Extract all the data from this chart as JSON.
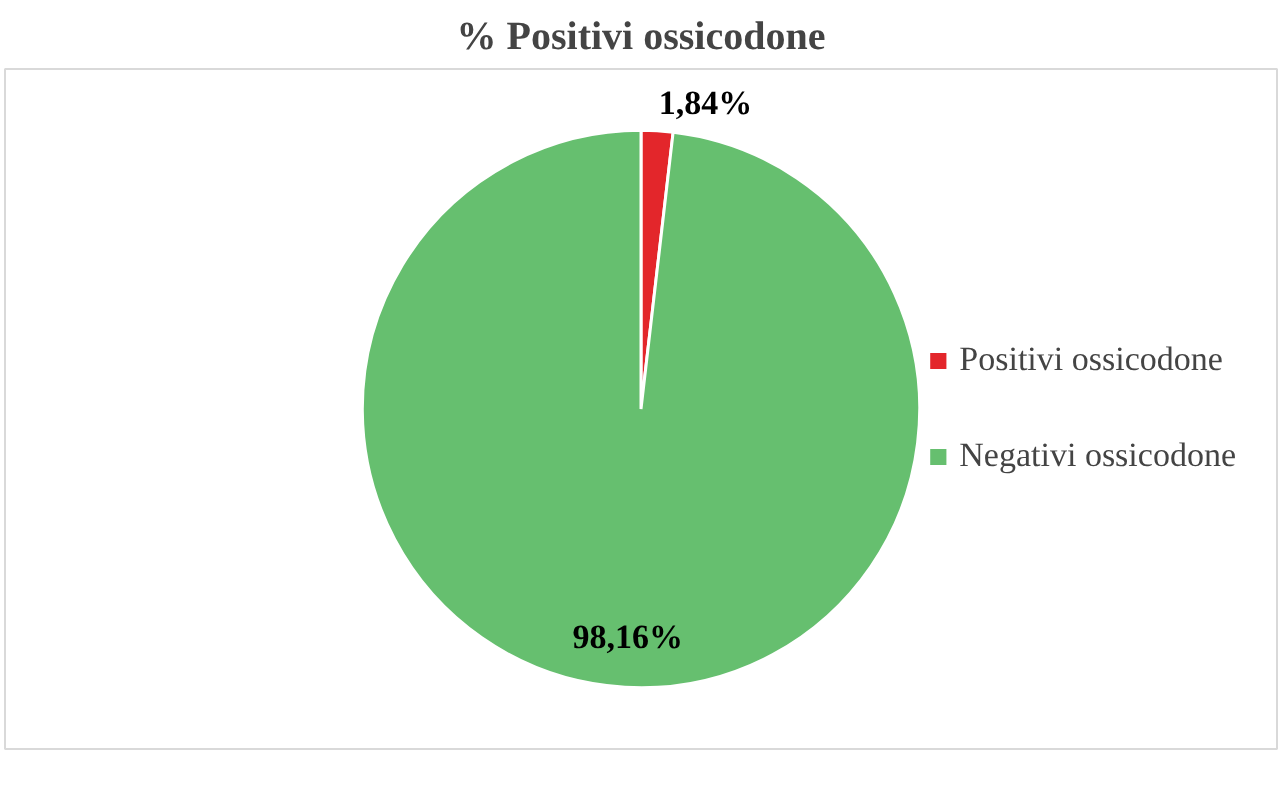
{
  "chart_data": {
    "type": "pie",
    "title": "% Positivi ossicodone",
    "categories": [
      "Positivi ossicodone",
      "Negativi ossicodone"
    ],
    "values": [
      1.84,
      98.16
    ],
    "colors": [
      "#e3262b",
      "#66bf6f"
    ],
    "value_labels": [
      "1,84%",
      "98,16%"
    ],
    "legend": "right"
  }
}
